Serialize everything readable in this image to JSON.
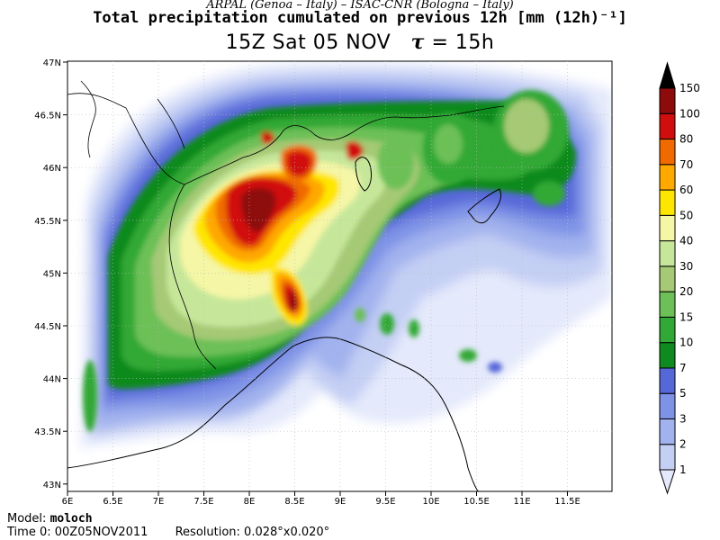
{
  "header": {
    "credit": "ARPAL (Genoa – Italy)   –   ISAC-CNR (Bologna – Italy)",
    "title": "Total precipitation cumulated on previous 12h [mm (12h)⁻¹]",
    "time_prefix": "15Z Sat 05 NOV",
    "tau_symbol": "τ",
    "tau_value": "= 15h"
  },
  "axes": {
    "lon_labels": [
      "6E",
      "6.5E",
      "7E",
      "7.5E",
      "8E",
      "8.5E",
      "9E",
      "9.5E",
      "10E",
      "10.5E",
      "11E",
      "11.5E"
    ],
    "lat_labels": [
      "47N",
      "46.5N",
      "46N",
      "45.5N",
      "45N",
      "44.5N",
      "44N",
      "43.5N",
      "43N"
    ]
  },
  "legend": {
    "levels": [
      "1",
      "2",
      "3",
      "5",
      "7",
      "10",
      "15",
      "20",
      "30",
      "40",
      "50",
      "60",
      "70",
      "80",
      "100",
      "150"
    ],
    "colors": [
      "#e4e9fb",
      "#c4cff4",
      "#a2b2ee",
      "#7f93e6",
      "#5667d8",
      "#0e8a1e",
      "#32a836",
      "#6cc057",
      "#a5c974",
      "#c6e79a",
      "#f5f6a6",
      "#ffe600",
      "#ffa800",
      "#f06a00",
      "#d10e0e",
      "#8e0b0b",
      "#000000"
    ]
  },
  "footer": {
    "model_label": "Model:",
    "model_value": "moloch",
    "time0_label": "Time 0:",
    "time0_value": "00Z05NOV2011",
    "resolution_label": "Resolution:",
    "resolution_value": "0.028°x0.020°"
  }
}
